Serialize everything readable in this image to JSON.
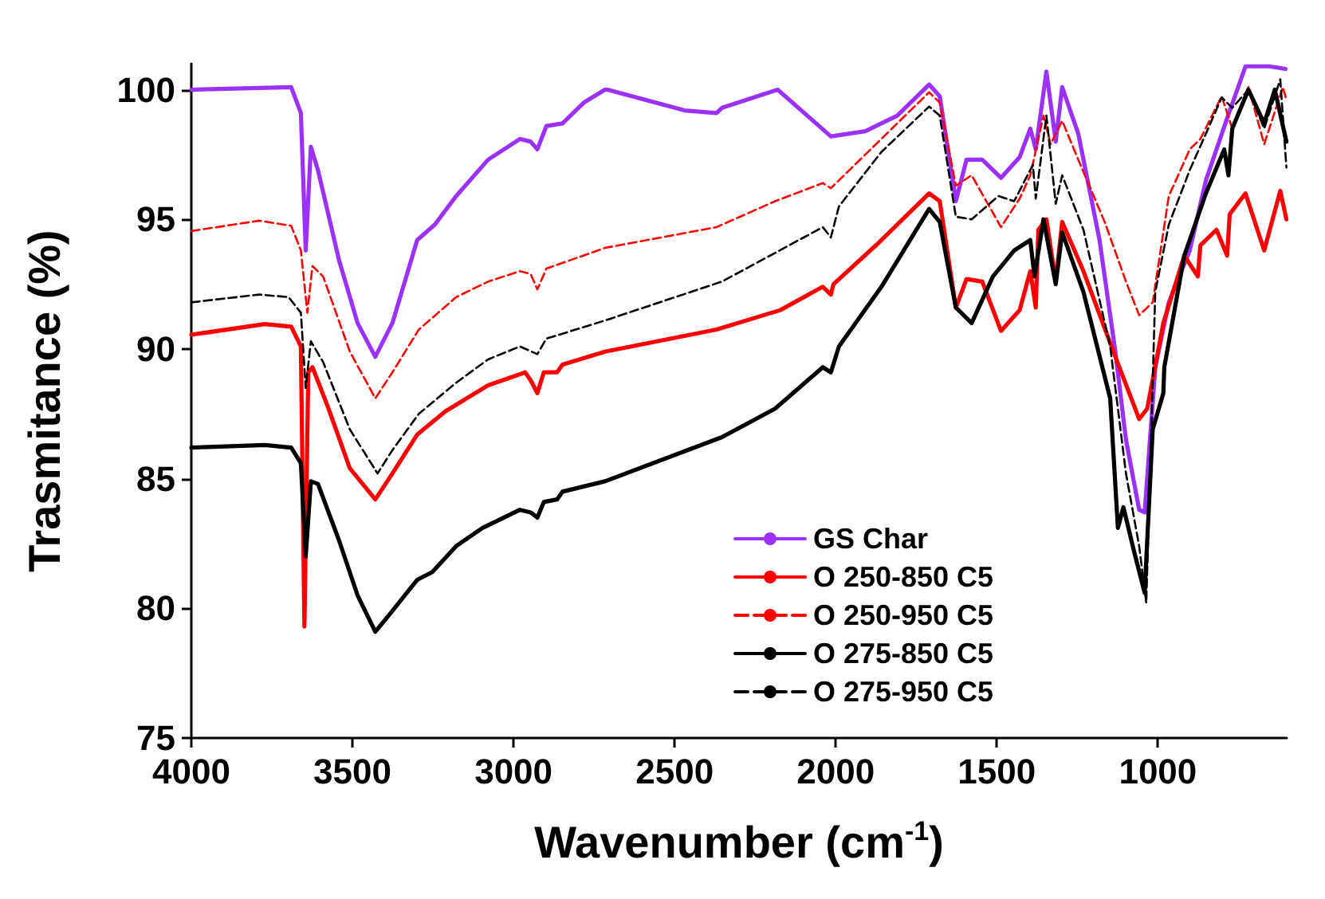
{
  "chart_data": {
    "type": "line",
    "xlabel": "Wavenumber (cm$^{-1}$)",
    "ylabel": "Trasmitance (%)",
    "xlim": [
      4000,
      600
    ],
    "xticks": [
      4000,
      3500,
      3000,
      2500,
      2000,
      1500,
      1000
    ],
    "ylim": [
      75,
      101
    ],
    "yticks": [
      75,
      80,
      85,
      90,
      95,
      100
    ],
    "grid": false,
    "legend": "bottom right",
    "marker": "none",
    "series": [
      {
        "name": "GS Char",
        "color": "#9b30ff",
        "line_style": "solid",
        "x": [
          4000,
          3690,
          3660,
          3645,
          3629,
          3607,
          3541,
          3484,
          3429,
          3376,
          3299,
          3244,
          3178,
          3079,
          2980,
          2947,
          2926,
          2898,
          2848,
          2782,
          2716,
          2708,
          2469,
          2370,
          2353,
          2180,
          2015,
          1908,
          1809,
          1710,
          1677,
          1627,
          1594,
          1545,
          1487,
          1429,
          1396,
          1379,
          1346,
          1317,
          1297,
          1247,
          1181,
          1132,
          1099,
          1058,
          1041,
          1008,
          966,
          901,
          851,
          785,
          728,
          653,
          604
        ],
        "values": [
          100,
          100.1,
          99.1,
          93.8,
          97.8,
          96.9,
          93.4,
          91.0,
          89.7,
          91.0,
          94.2,
          94.8,
          95.9,
          97.3,
          98.1,
          98.0,
          97.7,
          98.6,
          98.7,
          99.5,
          100,
          100,
          99.2,
          99.1,
          99.3,
          100,
          98.2,
          98.4,
          99.0,
          100.2,
          99.75,
          95.7,
          97.3,
          97.3,
          96.6,
          97.4,
          98.5,
          97.7,
          100.7,
          98.0,
          100.1,
          98.3,
          94.2,
          89.9,
          86.5,
          83.8,
          83.7,
          89.3,
          91.8,
          93.8,
          96.5,
          98.9,
          100.9,
          100.9,
          100.8
        ]
      },
      {
        "name": "O 250-850 C5",
        "color": "#ff0000",
        "line_style": "solid",
        "x": [
          4000,
          3772,
          3690,
          3660,
          3649,
          3637,
          3624,
          3574,
          3508,
          3429,
          3376,
          3299,
          3211,
          3079,
          2964,
          2947,
          2926,
          2906,
          2865,
          2848,
          2716,
          2370,
          2172,
          2040,
          2015,
          2007,
          1875,
          1710,
          1677,
          1627,
          1594,
          1545,
          1487,
          1429,
          1396,
          1379,
          1371,
          1346,
          1317,
          1297,
          1231,
          1132,
          1058,
          1033,
          983,
          918,
          876,
          868,
          818,
          785,
          777,
          728,
          670,
          620,
          601
        ],
        "values": [
          90.55,
          90.96,
          90.86,
          90.1,
          79.3,
          89.1,
          89.3,
          87.7,
          85.4,
          84.2,
          85.2,
          86.7,
          87.6,
          88.6,
          89.1,
          88.8,
          88.3,
          89.1,
          89.1,
          89.4,
          89.9,
          90.75,
          91.5,
          92.4,
          92.1,
          92.5,
          94.0,
          96.0,
          95.7,
          91.6,
          92.7,
          92.6,
          90.7,
          91.5,
          93.0,
          91.6,
          94.6,
          95.0,
          92.6,
          94.9,
          93.0,
          89.7,
          87.3,
          87.7,
          91.0,
          93.6,
          92.8,
          94.0,
          94.6,
          93.6,
          95.2,
          96.0,
          93.8,
          96.1,
          95.0
        ]
      },
      {
        "name": "O 250-950 C5",
        "color": "#ff0000",
        "line_style": "dashed",
        "x": [
          4000,
          3789,
          3690,
          3660,
          3640,
          3624,
          3591,
          3508,
          3429,
          3376,
          3294,
          3178,
          3079,
          2980,
          2947,
          2926,
          2898,
          2716,
          2370,
          2188,
          2040,
          2015,
          1875,
          1710,
          1677,
          1627,
          1578,
          1487,
          1429,
          1396,
          1355,
          1333,
          1297,
          1247,
          1165,
          1099,
          1058,
          1016,
          966,
          901,
          868,
          802,
          769,
          719,
          670,
          612,
          601
        ],
        "values": [
          94.55,
          94.95,
          94.75,
          93.8,
          91.4,
          93.2,
          92.8,
          89.9,
          88.1,
          89.1,
          90.75,
          92.0,
          92.6,
          93.0,
          92.9,
          92.3,
          93.1,
          93.9,
          94.7,
          95.7,
          96.4,
          96.2,
          97.9,
          99.9,
          99.5,
          96.3,
          96.7,
          94.7,
          95.8,
          96.7,
          99.0,
          97.9,
          98.8,
          97.3,
          94.9,
          92.6,
          91.3,
          91.8,
          95.9,
          97.7,
          98.1,
          99.75,
          98.5,
          100.1,
          97.9,
          100.1,
          99.6
        ]
      },
      {
        "name": "O 275-850 C5",
        "color": "#000000",
        "line_style": "solid",
        "x": [
          4000,
          3772,
          3690,
          3660,
          3645,
          3629,
          3607,
          3541,
          3484,
          3429,
          3376,
          3299,
          3252,
          3178,
          3096,
          2980,
          2947,
          2926,
          2906,
          2865,
          2848,
          2716,
          2353,
          2188,
          2040,
          2015,
          1990,
          1858,
          1710,
          1677,
          1627,
          1578,
          1512,
          1446,
          1396,
          1383,
          1355,
          1317,
          1297,
          1231,
          1148,
          1124,
          1107,
          1074,
          1041,
          1016,
          983,
          980,
          918,
          851,
          794,
          781,
          769,
          719,
          670,
          637,
          601
        ],
        "values": [
          86.2,
          86.3,
          86.2,
          85.6,
          82.0,
          84.9,
          84.8,
          82.6,
          80.5,
          79.1,
          79.9,
          81.1,
          81.4,
          82.4,
          83.1,
          83.8,
          83.7,
          83.5,
          84.1,
          84.2,
          84.5,
          84.9,
          86.6,
          87.7,
          89.3,
          89.1,
          90.1,
          92.4,
          95.4,
          94.9,
          91.6,
          91.0,
          92.8,
          93.8,
          94.2,
          92.8,
          95.0,
          92.5,
          94.5,
          92.2,
          88.1,
          83.1,
          83.9,
          82.2,
          80.6,
          86.9,
          88.3,
          89.3,
          93.6,
          96.0,
          97.7,
          96.7,
          98.5,
          100.0,
          98.7,
          100.0,
          98.0
        ]
      },
      {
        "name": "O 275-950 C5",
        "color": "#000000",
        "line_style": "dashed",
        "x": [
          4000,
          3789,
          3698,
          3660,
          3645,
          3629,
          3591,
          3508,
          3422,
          3376,
          3294,
          3178,
          3079,
          2980,
          2926,
          2898,
          2716,
          2353,
          2040,
          2015,
          1990,
          1858,
          1710,
          1677,
          1627,
          1578,
          1495,
          1446,
          1388,
          1379,
          1346,
          1317,
          1297,
          1231,
          1148,
          1099,
          1058,
          1036,
          1008,
          966,
          901,
          851,
          802,
          769,
          719,
          670,
          620,
          601
        ],
        "values": [
          91.8,
          92.1,
          92.0,
          91.4,
          88.5,
          90.3,
          89.5,
          86.9,
          85.2,
          86.1,
          87.5,
          88.7,
          89.6,
          90.1,
          89.8,
          90.4,
          91.1,
          92.6,
          94.7,
          94.3,
          95.5,
          97.6,
          99.35,
          99.0,
          95.1,
          95.0,
          95.9,
          95.7,
          97.1,
          95.8,
          99.0,
          95.6,
          96.7,
          94.6,
          90.1,
          85.2,
          82.4,
          80.2,
          92.2,
          94.8,
          96.9,
          98.3,
          99.7,
          99.3,
          100.0,
          98.5,
          100.4,
          97.0
        ]
      }
    ]
  }
}
